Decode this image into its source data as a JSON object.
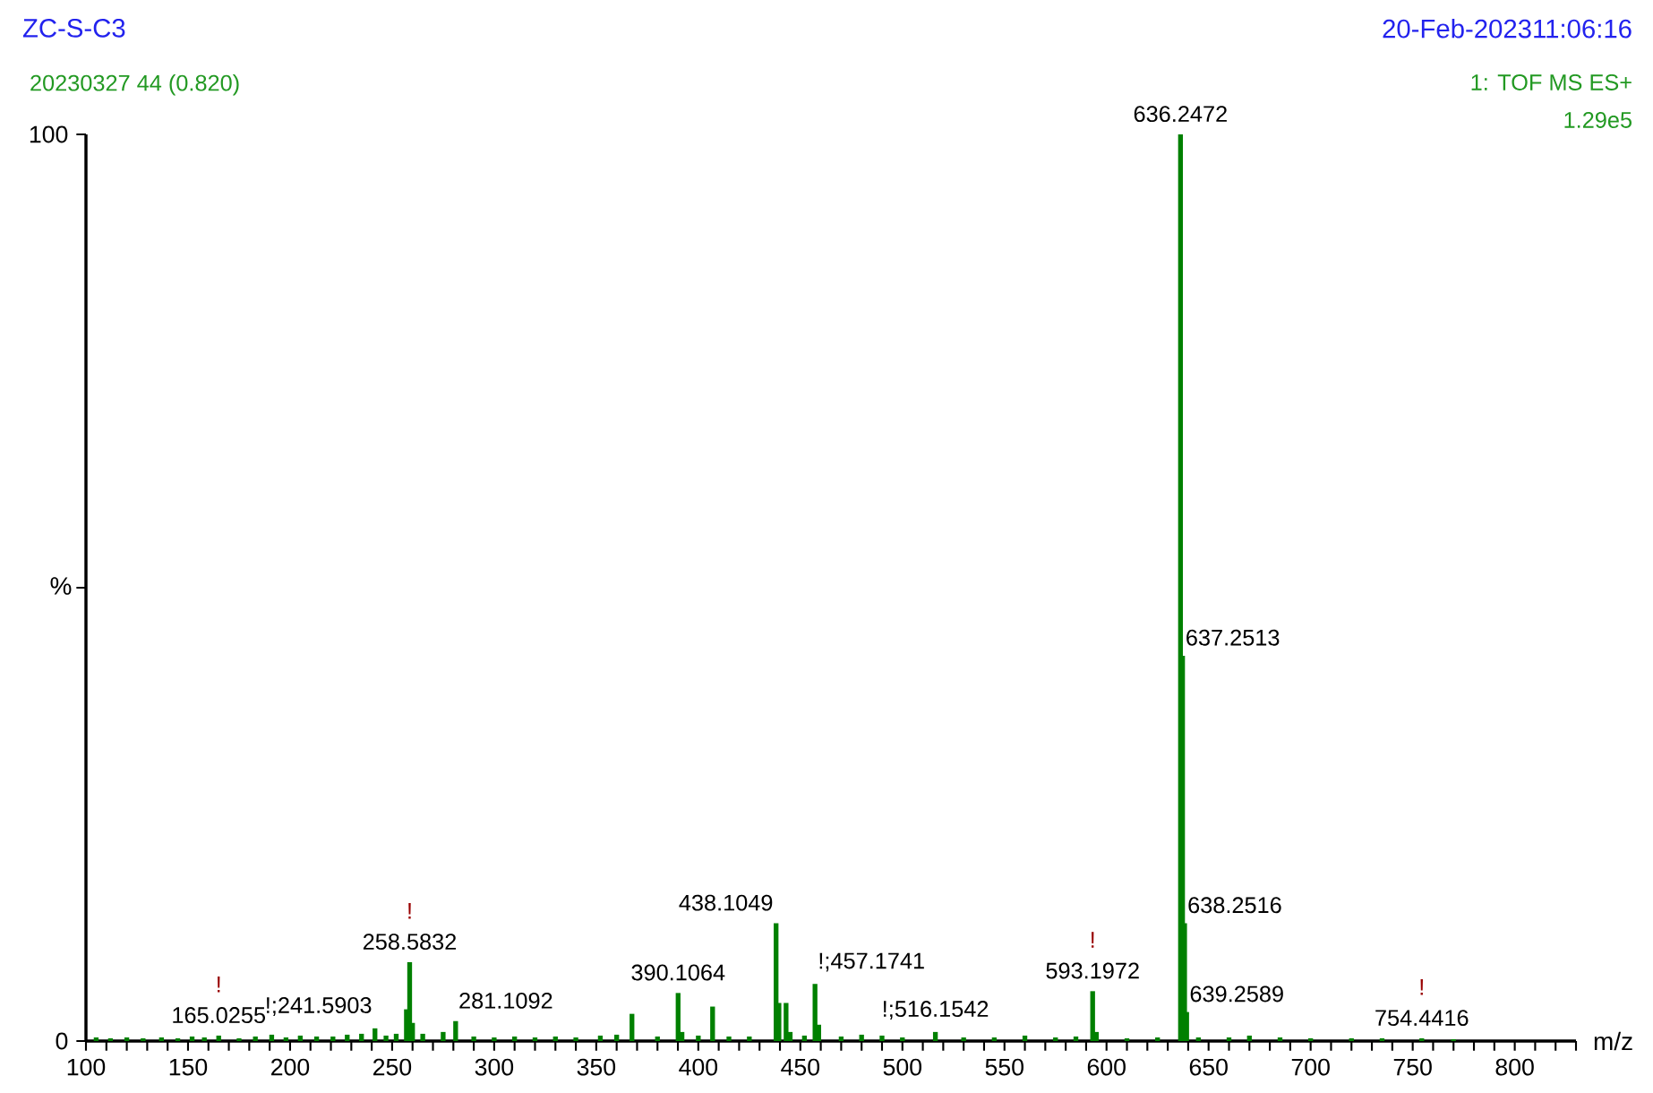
{
  "chart_data": {
    "type": "bar",
    "title": "ZC-S-C3",
    "subtitle": "20230327 44 (0.820)",
    "xlabel": "m/z",
    "ylabel": "%",
    "annotations": [
      "20-Feb-202311:06:16",
      "1: TOF MS ES+",
      "1.29e5",
      {
        "text": "165.0255",
        "x": 165.0255,
        "y": 0.6
      },
      {
        "text": "!",
        "x": 165.0255,
        "y": 0.6
      },
      {
        "text": "!;241.5903",
        "x": 241.5903,
        "y": 1.4
      },
      {
        "text": "258.5832",
        "x": 258.5832,
        "y": 8.7
      },
      {
        "text": "!",
        "x": 258.5832,
        "y": 8.7
      },
      {
        "text": "281.1092",
        "x": 281.1092,
        "y": 2.2
      },
      {
        "text": "390.1064",
        "x": 390.1064,
        "y": 5.3
      },
      {
        "text": "438.1049",
        "x": 438.1049,
        "y": 13.0
      },
      {
        "text": "!;457.1741",
        "x": 457.1741,
        "y": 6.3
      },
      {
        "text": "!;516.1542",
        "x": 516.1542,
        "y": 1.0
      },
      {
        "text": "593.1972",
        "x": 593.1972,
        "y": 5.5
      },
      {
        "text": "!",
        "x": 593.1972,
        "y": 5.5
      },
      {
        "text": "636.2472",
        "x": 636.2472,
        "y": 100
      },
      {
        "text": "637.2513",
        "x": 637.2513,
        "y": 42.5
      },
      {
        "text": "638.2516",
        "x": 638.2516,
        "y": 13.0
      },
      {
        "text": "639.2589",
        "x": 639.2589,
        "y": 3.2
      },
      {
        "text": "754.4416",
        "x": 754.4416,
        "y": 0.3
      },
      {
        "text": "!",
        "x": 754.4416,
        "y": 0.3
      }
    ],
    "x": [
      105,
      112,
      120,
      128,
      137,
      145,
      152,
      158,
      165.0255,
      175,
      183,
      191,
      198,
      205,
      213,
      221,
      228,
      235,
      241.5903,
      247,
      252,
      257,
      258.5832,
      260,
      265,
      275,
      281.1092,
      290,
      300,
      310,
      320,
      330,
      340,
      352,
      360,
      367.5,
      380,
      390.1064,
      392,
      400,
      407,
      415,
      425,
      438.1049,
      439.5,
      443,
      445,
      452,
      457.1741,
      459,
      470,
      480,
      490,
      500,
      516.1542,
      530,
      545,
      560,
      575,
      585,
      593.1972,
      595,
      610,
      625,
      636.2472,
      637.2513,
      638.2516,
      639.2589,
      645,
      660,
      670,
      685,
      700,
      720,
      735,
      754.4416,
      770
    ],
    "values": [
      0.4,
      0.3,
      0.4,
      0.3,
      0.4,
      0.3,
      0.5,
      0.4,
      0.6,
      0.3,
      0.5,
      0.7,
      0.4,
      0.6,
      0.5,
      0.5,
      0.7,
      0.8,
      1.4,
      0.6,
      0.8,
      3.5,
      8.7,
      2.0,
      0.8,
      1.0,
      2.2,
      0.5,
      0.4,
      0.5,
      0.4,
      0.5,
      0.4,
      0.6,
      0.7,
      3.0,
      0.5,
      5.3,
      1.0,
      0.6,
      3.8,
      0.5,
      0.5,
      13.0,
      4.2,
      4.2,
      1.0,
      0.6,
      6.3,
      1.8,
      0.5,
      0.7,
      0.6,
      0.4,
      1.0,
      0.4,
      0.4,
      0.6,
      0.4,
      0.5,
      5.5,
      1.0,
      0.3,
      0.4,
      100,
      42.5,
      13.0,
      3.2,
      0.4,
      0.4,
      0.6,
      0.4,
      0.3,
      0.3,
      0.3,
      0.3,
      0.2
    ],
    "color": "#008000",
    "xlim": [
      100,
      830
    ],
    "ylim": [
      0,
      100
    ],
    "xticks": [
      100,
      {
        "value": 110,
        "label": null
      },
      {
        "value": 120,
        "label": null
      },
      {
        "value": 130,
        "label": null
      },
      {
        "value": 140,
        "label": null
      },
      150,
      {
        "value": 160,
        "label": null
      },
      {
        "value": 170,
        "label": null
      },
      {
        "value": 180,
        "label": null
      },
      {
        "value": 190,
        "label": null
      },
      200,
      {
        "value": 210,
        "label": null
      },
      {
        "value": 220,
        "label": null
      },
      {
        "value": 230,
        "label": null
      },
      {
        "value": 240,
        "label": null
      },
      250,
      {
        "value": 260,
        "label": null
      },
      {
        "value": 270,
        "label": null
      },
      {
        "value": 280,
        "label": null
      },
      {
        "value": 290,
        "label": null
      },
      300,
      {
        "value": 310,
        "label": null
      },
      {
        "value": 320,
        "label": null
      },
      {
        "value": 330,
        "label": null
      },
      {
        "value": 340,
        "label": null
      },
      350,
      {
        "value": 360,
        "label": null
      },
      {
        "value": 370,
        "label": null
      },
      {
        "value": 380,
        "label": null
      },
      {
        "value": 390,
        "label": null
      },
      400,
      {
        "value": 410,
        "label": null
      },
      {
        "value": 420,
        "label": null
      },
      {
        "value": 430,
        "label": null
      },
      {
        "value": 440,
        "label": null
      },
      450,
      {
        "value": 460,
        "label": null
      },
      {
        "value": 470,
        "label": null
      },
      {
        "value": 480,
        "label": null
      },
      {
        "value": 490,
        "label": null
      },
      500,
      {
        "value": 510,
        "label": null
      },
      {
        "value": 520,
        "label": null
      },
      {
        "value": 530,
        "label": null
      },
      {
        "value": 540,
        "label": null
      },
      550,
      {
        "value": 560,
        "label": null
      },
      {
        "value": 570,
        "label": null
      },
      {
        "value": 580,
        "label": null
      },
      {
        "value": 590,
        "label": null
      },
      600,
      {
        "value": 610,
        "label": null
      },
      {
        "value": 620,
        "label": null
      },
      {
        "value": 630,
        "label": null
      },
      {
        "value": 640,
        "label": null
      },
      650,
      {
        "value": 660,
        "label": null
      },
      {
        "value": 670,
        "label": null
      },
      {
        "value": 680,
        "label": null
      },
      {
        "value": 690,
        "label": null
      },
      700,
      {
        "value": 710,
        "label": null
      },
      {
        "value": 720,
        "label": null
      },
      {
        "value": 730,
        "label": null
      },
      {
        "value": 740,
        "label": null
      },
      750,
      {
        "value": 760,
        "label": null
      },
      {
        "value": 770,
        "label": null
      },
      {
        "value": 780,
        "label": null
      },
      {
        "value": 790,
        "label": null
      },
      800,
      {
        "value": 810,
        "label": null
      },
      {
        "value": 820,
        "label": null
      },
      {
        "value": 830,
        "label": null
      }
    ],
    "yticks": [
      0,
      {
        "value": 50,
        "label": null
      },
      100
    ]
  }
}
